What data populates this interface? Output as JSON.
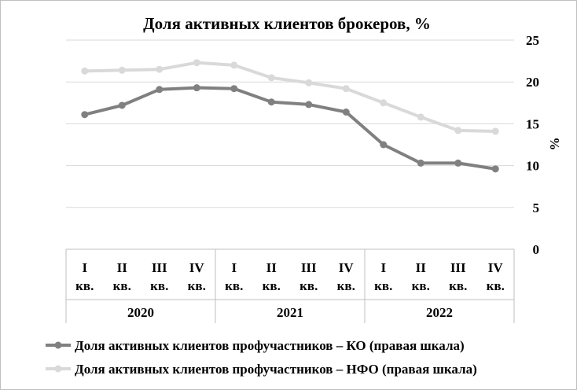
{
  "chart_data": {
    "type": "line",
    "title": "Доля активных клиентов брокеров, %",
    "ylabel": "%",
    "ylim": [
      0,
      25
    ],
    "yticks": [
      0,
      5,
      10,
      15,
      20,
      25
    ],
    "y_axis_side": "right",
    "grid": true,
    "legend_position": "bottom",
    "groups": [
      {
        "label": "2020",
        "quarters": [
          "I кв.",
          "II кв.",
          "III кв.",
          "IV кв."
        ]
      },
      {
        "label": "2021",
        "quarters": [
          "I кв.",
          "II кв.",
          "III кв.",
          "IV кв."
        ]
      },
      {
        "label": "2022",
        "quarters": [
          "I кв.",
          "II кв.",
          "III кв.",
          "IV кв."
        ]
      }
    ],
    "series": [
      {
        "name": "Доля активных клиентов профучастников – КО (правая шкала)",
        "color": "#808080",
        "values": [
          16.1,
          17.2,
          19.1,
          19.3,
          19.2,
          17.6,
          17.3,
          16.4,
          12.5,
          10.3,
          10.3,
          9.6
        ]
      },
      {
        "name": "Доля активных клиентов профучастников – НФО (правая шкала)",
        "color": "#d9d9d9",
        "values": [
          21.3,
          21.4,
          21.5,
          22.3,
          22.0,
          20.5,
          19.9,
          19.2,
          17.5,
          15.8,
          14.2,
          14.1
        ]
      }
    ]
  }
}
